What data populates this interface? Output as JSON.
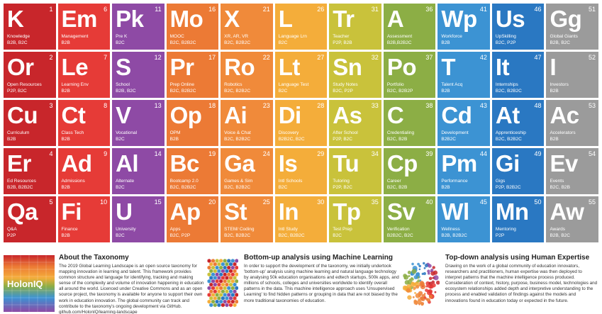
{
  "cells": [
    {
      "sym": "K",
      "num": "1",
      "name": "Knowledge",
      "seg": "B2B, B2C",
      "color": "#c8262b"
    },
    {
      "sym": "Em",
      "num": "6",
      "name": "Management",
      "seg": "B2B",
      "color": "#e63b37"
    },
    {
      "sym": "Pk",
      "num": "11",
      "name": "Pre K",
      "seg": "B2C",
      "color": "#8e4aa5"
    },
    {
      "sym": "Mo",
      "num": "16",
      "name": "MOOC",
      "seg": "B2C, B2B2C",
      "color": "#ec7a35"
    },
    {
      "sym": "X",
      "num": "21",
      "name": "XR, AR, VR",
      "seg": "B2C, B2B2C",
      "color": "#f08a3a"
    },
    {
      "sym": "L",
      "num": "26",
      "name": "Language Lrn",
      "seg": "B2C",
      "color": "#f4ad3a"
    },
    {
      "sym": "Tr",
      "num": "31",
      "name": "Teacher",
      "seg": "P2P, B2B",
      "color": "#c9c23b"
    },
    {
      "sym": "A",
      "num": "36",
      "name": "Assessment",
      "seg": "B2B,B2B2C",
      "color": "#8cae45"
    },
    {
      "sym": "Wp",
      "num": "41",
      "name": "Workforce",
      "seg": "B2B",
      "color": "#3c93d3"
    },
    {
      "sym": "Us",
      "num": "46",
      "name": "UpSkilling",
      "seg": "B2C, P2P",
      "color": "#2a78c2"
    },
    {
      "sym": "Gg",
      "num": "51",
      "name": "Global Giants",
      "seg": "B2B, B2C",
      "color": "#9b9b9b"
    },
    {
      "sym": "Or",
      "num": "2",
      "name": "Open Resources",
      "seg": "P2P, B2C",
      "color": "#c8262b"
    },
    {
      "sym": "Le",
      "num": "7",
      "name": "Learning Env",
      "seg": "B2B",
      "color": "#e63b37"
    },
    {
      "sym": "S",
      "num": "12",
      "name": "School",
      "seg": "B2B, B2C",
      "color": "#8e4aa5"
    },
    {
      "sym": "Pr",
      "num": "17",
      "name": "Prep Online",
      "seg": "B2C, B2B2C",
      "color": "#ec7a35"
    },
    {
      "sym": "Ro",
      "num": "22",
      "name": "Robotics",
      "seg": "B2C, B2B2C",
      "color": "#f08a3a"
    },
    {
      "sym": "Lt",
      "num": "27",
      "name": "Language Test",
      "seg": "B2C",
      "color": "#f4ad3a"
    },
    {
      "sym": "Sn",
      "num": "32",
      "name": "Study Notes",
      "seg": "B2C, P2P",
      "color": "#c9c23b"
    },
    {
      "sym": "Po",
      "num": "37",
      "name": "Portfolio",
      "seg": "B2C, B2B2P",
      "color": "#8cae45"
    },
    {
      "sym": "T",
      "num": "42",
      "name": "Talent Acq",
      "seg": "B2B",
      "color": "#3c93d3"
    },
    {
      "sym": "It",
      "num": "47",
      "name": "Internships",
      "seg": "B2C, B2B2C",
      "color": "#2a78c2"
    },
    {
      "sym": "I",
      "num": "52",
      "name": "Investors",
      "seg": "B2B",
      "color": "#9b9b9b"
    },
    {
      "sym": "Cu",
      "num": "3",
      "name": "Curriculum",
      "seg": "B2B",
      "color": "#c8262b"
    },
    {
      "sym": "Ct",
      "num": "8",
      "name": "Class Tech",
      "seg": "B2B",
      "color": "#e63b37"
    },
    {
      "sym": "V",
      "num": "13",
      "name": "Vocational",
      "seg": "B2C",
      "color": "#8e4aa5"
    },
    {
      "sym": "Op",
      "num": "18",
      "name": "OPM",
      "seg": "B2B",
      "color": "#ec7a35"
    },
    {
      "sym": "Ai",
      "num": "23",
      "name": "Voice & Chat",
      "seg": "B2C, B2B2C",
      "color": "#f08a3a"
    },
    {
      "sym": "Di",
      "num": "28",
      "name": "Discovery",
      "seg": "B2B2C, B2C",
      "color": "#f4ad3a"
    },
    {
      "sym": "As",
      "num": "33",
      "name": "After School",
      "seg": "P2P, B2C",
      "color": "#c9c23b"
    },
    {
      "sym": "C",
      "num": "38",
      "name": "Credentialing",
      "seg": "B2C, B2B",
      "color": "#8cae45"
    },
    {
      "sym": "Cd",
      "num": "43",
      "name": "Development",
      "seg": "B2B2C",
      "color": "#3c93d3"
    },
    {
      "sym": "At",
      "num": "48",
      "name": "Apprenticeship",
      "seg": "B2C, B2B2C",
      "color": "#2a78c2"
    },
    {
      "sym": "Ac",
      "num": "53",
      "name": "Accelerators",
      "seg": "B2B",
      "color": "#9b9b9b"
    },
    {
      "sym": "Er",
      "num": "4",
      "name": "Ed Resources",
      "seg": "B2B, B2B2C",
      "color": "#c8262b"
    },
    {
      "sym": "Ad",
      "num": "9",
      "name": "Admissions",
      "seg": "B2B",
      "color": "#e63b37"
    },
    {
      "sym": "Al",
      "num": "14",
      "name": "Alternate",
      "seg": "B2C",
      "color": "#8e4aa5"
    },
    {
      "sym": "Bc",
      "num": "19",
      "name": "Bootcamp 2.0",
      "seg": "B2C, B2B2C",
      "color": "#ec7a35"
    },
    {
      "sym": "Ga",
      "num": "24",
      "name": "Games & Sim",
      "seg": "B2C, B2B2C",
      "color": "#f08a3a"
    },
    {
      "sym": "Is",
      "num": "29",
      "name": "Intl Schools",
      "seg": "B2C",
      "color": "#f4ad3a"
    },
    {
      "sym": "Tu",
      "num": "34",
      "name": "Tutoring",
      "seg": "P2P, B2C",
      "color": "#c9c23b"
    },
    {
      "sym": "Cp",
      "num": "39",
      "name": "Career",
      "seg": "B2C, B2B",
      "color": "#8cae45"
    },
    {
      "sym": "Pm",
      "num": "44",
      "name": "Performance",
      "seg": "B2B",
      "color": "#3c93d3"
    },
    {
      "sym": "Gi",
      "num": "49",
      "name": "Gigs",
      "seg": "P2P, B2B2C",
      "color": "#2a78c2"
    },
    {
      "sym": "Ev",
      "num": "54",
      "name": "Events",
      "seg": "B2C, B2B",
      "color": "#9b9b9b"
    },
    {
      "sym": "Qa",
      "num": "5",
      "name": "Q&A",
      "seg": "P2P",
      "color": "#c8262b"
    },
    {
      "sym": "Fi",
      "num": "10",
      "name": "Finance",
      "seg": "B2B",
      "color": "#e63b37"
    },
    {
      "sym": "U",
      "num": "15",
      "name": "University",
      "seg": "B2C",
      "color": "#8e4aa5"
    },
    {
      "sym": "Ap",
      "num": "20",
      "name": "Apps",
      "seg": "B2C, P2P",
      "color": "#ec7a35"
    },
    {
      "sym": "St",
      "num": "25",
      "name": "STEM/ Coding",
      "seg": "B2C, B2B2C",
      "color": "#f08a3a"
    },
    {
      "sym": "In",
      "num": "30",
      "name": "Intl Study",
      "seg": "B2C, B2B2C",
      "color": "#f4ad3a"
    },
    {
      "sym": "Tp",
      "num": "35",
      "name": "Test Prep",
      "seg": "B2C",
      "color": "#c9c23b"
    },
    {
      "sym": "Sv",
      "num": "40",
      "name": "Verification",
      "seg": "B2B2C, B2C",
      "color": "#8cae45"
    },
    {
      "sym": "Wl",
      "num": "45",
      "name": "Wellness",
      "seg": "B2B, B2B2C",
      "color": "#3c93d3"
    },
    {
      "sym": "Mn",
      "num": "50",
      "name": "Mentoring",
      "seg": "P2P",
      "color": "#2a78c2"
    },
    {
      "sym": "Aw",
      "num": "55",
      "name": "Awards",
      "seg": "B2B, B2C",
      "color": "#9b9b9b"
    }
  ],
  "about": {
    "logo": "HolonIQ",
    "title": "About the Taxonomy",
    "body": "The 2019 Global Learning Landscape is an open source taxonomy for mapping innovation in learning and talent. This framework provides common structure and language for identifying, tracking and making sense of the complexity and volume of innovation happening in education all around the world. Licenced under Creative Commons and as an open source project, the taxonomy is available for anyone to support their own work in education innovation. The global community can track and contribute to the taxonomy's ongoing development via GitHub. github.com/HolonIQ/learning-landscape"
  },
  "bottom_up": {
    "title": "Bottom-up analysis using Machine Learning",
    "body": "In order to support the development of the taxonomy, we initially undertook 'bottom-up' analysis using machine learning and natural language technology by analysing 50k education organisations and edtech startups, 500k apps, and millions of schools, colleges and universities worldwide to identify overall patterns in the data. This machine intelligence approach uses 'Unsupervised Learning' to find hidden patterns or grouping in data that are not biased by the more traditional taxonomies of education."
  },
  "top_down": {
    "title": "Top-down analysis using Human Expertise",
    "body": "Drawing on the work of a global community of education innovators, researchers and practitioners, human expertise was then deployed to interpret patterns that the machine intelligence process produced. Consideration of context, history, purpose, business model, technologies and ecosystem relationships added depth and interpretive understanding to the process and enabled validation of findings against the models and innovations found in education today or expected in the future."
  }
}
